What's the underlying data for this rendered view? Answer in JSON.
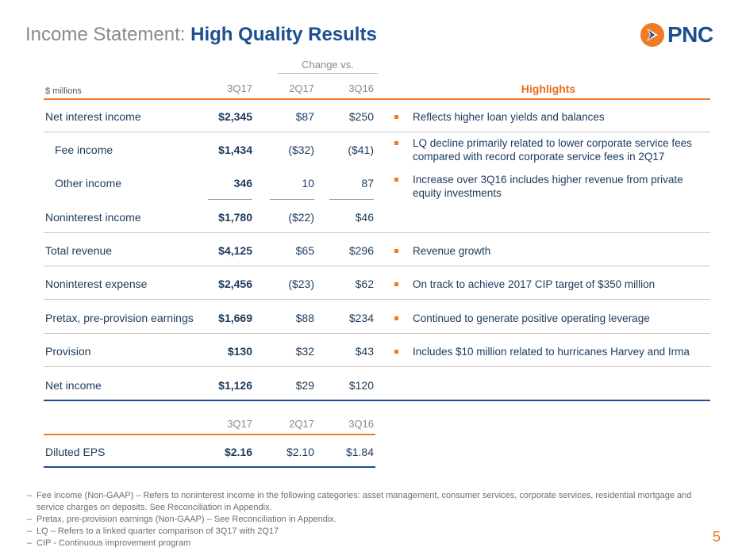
{
  "title": {
    "prefix": "Income Statement:",
    "highlight": "High Quality Results"
  },
  "logo": {
    "word": "PNC",
    "icon": "pnc-flag-icon",
    "colors": {
      "orange": "#ef7b22",
      "blue": "#1d4f91"
    }
  },
  "table": {
    "units_label": "$ millions",
    "change_vs_label": "Change vs.",
    "columns": [
      "3Q17",
      "2Q17",
      "3Q16"
    ],
    "highlights_label": "Highlights",
    "rows": [
      {
        "label": "Net interest income",
        "q3_17": "$2,345",
        "q2_17": "$87",
        "q3_16": "$250"
      },
      {
        "label": "Fee income",
        "q3_17": "$1,434",
        "q2_17": "($32)",
        "q3_16": "($41)"
      },
      {
        "label": "Other income",
        "q3_17": "346",
        "q2_17": "10",
        "q3_16": "87"
      },
      {
        "label": "Noninterest income",
        "q3_17": "$1,780",
        "q2_17": "($22)",
        "q3_16": "$46"
      },
      {
        "label": "Total revenue",
        "q3_17": "$4,125",
        "q2_17": "$65",
        "q3_16": "$296"
      },
      {
        "label": "Noninterest expense",
        "q3_17": "$2,456",
        "q2_17": "($23)",
        "q3_16": "$62"
      },
      {
        "label": "Pretax, pre-provision earnings",
        "q3_17": "$1,669",
        "q2_17": "$88",
        "q3_16": "$234"
      },
      {
        "label": "Provision",
        "q3_17": "$130",
        "q2_17": "$32",
        "q3_16": "$43"
      },
      {
        "label": "Net income",
        "q3_17": "$1,126",
        "q2_17": "$29",
        "q3_16": "$120"
      }
    ],
    "highlights": [
      "Reflects higher loan yields and balances",
      "LQ decline primarily related to lower corporate service fees compared with record corporate service fees in 2Q17",
      "Increase over 3Q16 includes higher revenue from private equity investments",
      "Revenue growth",
      "On track to achieve 2017 CIP target of $350 million",
      "Continued to generate positive operating leverage",
      "Includes $10 million related to hurricanes Harvey and Irma"
    ]
  },
  "eps": {
    "columns": [
      "3Q17",
      "2Q17",
      "3Q16"
    ],
    "label": "Diluted EPS",
    "q3_17": "$2.16",
    "q2_17": "$2.10",
    "q3_16": "$1.84"
  },
  "footnotes": [
    "Fee income (Non-GAAP) – Refers to noninterest income in the following categories: asset management, consumer services, corporate services, residential mortgage and service charges on deposits. See Reconciliation in Appendix.",
    "Pretax, pre-provision earnings (Non-GAAP) – See Reconciliation in Appendix.",
    "LQ – Refers to a linked quarter comparison of 3Q17 with 2Q17",
    "CIP - Continuous improvement program"
  ],
  "footnote_dash": "–",
  "page_number": "5"
}
